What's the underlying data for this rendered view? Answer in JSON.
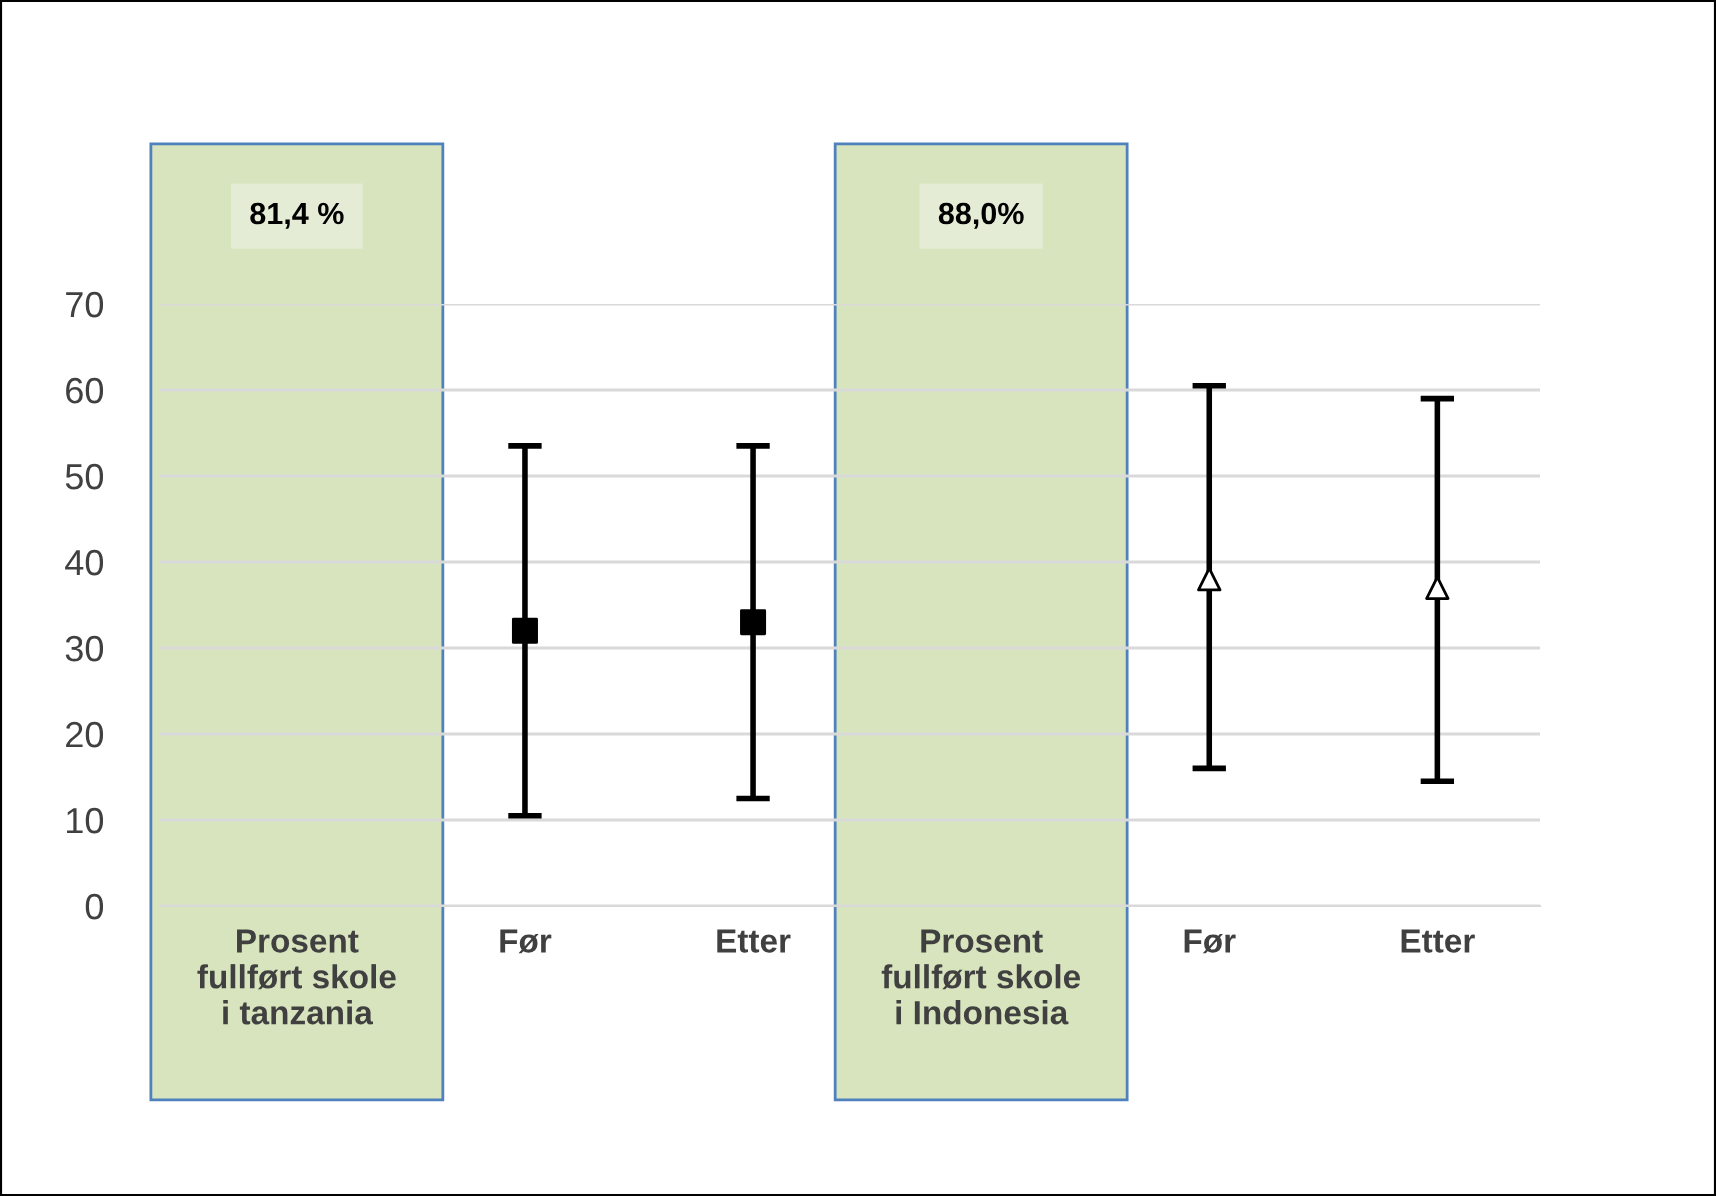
{
  "chart_data": {
    "type": "scatter",
    "categories": [
      "Prosent fullført skole i tanzania",
      "Før",
      "Etter",
      "Prosent fullført skole i Indonesia",
      "Før",
      "Etter"
    ],
    "series": [
      {
        "color": "#000000",
        "marker": "square",
        "values": [
          null,
          32,
          33,
          null,
          null,
          null
        ],
        "errors": [
          null,
          [
            10.5,
            53.5
          ],
          [
            12.5,
            53.5
          ],
          null,
          null,
          null
        ]
      },
      {
        "color": "#000000",
        "marker": "triangle",
        "values": [
          null,
          null,
          null,
          null,
          38,
          37
        ],
        "errors": [
          null,
          null,
          null,
          null,
          [
            16,
            60.5
          ],
          [
            14.5,
            59
          ]
        ]
      }
    ],
    "annotations": [
      "81,4 %",
      "88,0%"
    ],
    "ylim": [
      0,
      70
    ],
    "yticks": [
      0,
      10,
      20,
      30,
      40,
      50,
      60,
      70
    ],
    "grid": "y"
  }
}
